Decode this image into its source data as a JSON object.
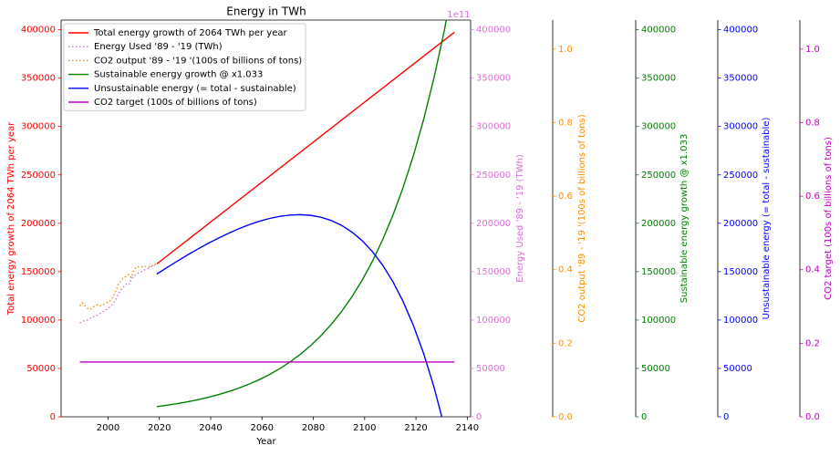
{
  "chart_data": {
    "type": "line",
    "title": "Energy in TWh",
    "xlabel": "Year",
    "xlim": [
      1981.7,
      2141.3
    ],
    "xticks": [
      2000,
      2020,
      2040,
      2060,
      2080,
      2100,
      2120,
      2140
    ],
    "offset_text": "1e11",
    "legend": "upper left",
    "grid": false,
    "axes": [
      {
        "label": "Total energy growth of 2064 TWh per year",
        "color": "red",
        "ylim": [
          0,
          410000
        ],
        "yticks": [
          0,
          50000,
          100000,
          150000,
          200000,
          250000,
          300000,
          350000,
          400000
        ]
      },
      {
        "label": "Energy Used '89 - '19 (TWh)",
        "color": "orchid",
        "ylim": [
          0,
          410000
        ],
        "yticks": [
          0,
          50000,
          100000,
          150000,
          200000,
          250000,
          300000,
          350000,
          400000
        ]
      },
      {
        "label": "CO2 output '89 - '19 '(100s of billions of tons)",
        "color": "darkorange",
        "ylim": [
          0,
          1.079
        ],
        "yticks": [
          {
            "value": 0,
            "label": "0.0"
          },
          0.2,
          0.4,
          0.6,
          0.8,
          {
            "value": 1,
            "label": "1.0"
          }
        ]
      },
      {
        "label": "Sustainable energy growth @ x1.033",
        "color": "green",
        "ylim": [
          0,
          410000
        ],
        "yticks": [
          0,
          50000,
          100000,
          150000,
          200000,
          250000,
          300000,
          350000,
          400000
        ]
      },
      {
        "label": "Unsustainable energy (= total - sustainable)",
        "color": "blue",
        "ylim": [
          0,
          410000
        ],
        "yticks": [
          0,
          50000,
          100000,
          150000,
          200000,
          250000,
          300000,
          350000,
          400000
        ]
      },
      {
        "label": "CO2 target (100s of billions of tons)",
        "color": "#c000c0",
        "ylim": [
          0,
          1.079
        ],
        "yticks": [
          {
            "value": 0,
            "label": "0.0"
          },
          0.2,
          0.4,
          0.6,
          0.8,
          {
            "value": 1,
            "label": "1.0"
          }
        ]
      }
    ],
    "series": [
      {
        "name": "Total energy growth of 2064 TWh per year",
        "color": "red",
        "style": "solid",
        "axis": 0,
        "x": [
          2019,
          2135
        ],
        "values": [
          158000,
          397424
        ]
      },
      {
        "name": "Energy Used '89 - '19 (TWh)",
        "color": "orchid",
        "style": "dotted",
        "axis": 1,
        "x": [
          1989,
          1990,
          1991,
          1992,
          1993,
          1994,
          1995,
          1996,
          1997,
          1998,
          1999,
          2000,
          2001,
          2002,
          2003,
          2004,
          2005,
          2006,
          2007,
          2008,
          2009,
          2010,
          2011,
          2012,
          2013,
          2014,
          2015,
          2016,
          2017,
          2018,
          2019
        ],
        "values": [
          97000,
          98500,
          99500,
          100000,
          101500,
          103000,
          104000,
          105500,
          107000,
          108500,
          110000,
          112000,
          114000,
          117000,
          121000,
          127000,
          131000,
          134000,
          137000,
          136000,
          142000,
          145000,
          147000,
          149000,
          150000,
          151500,
          152500,
          154000,
          155500,
          156500,
          158000
        ]
      },
      {
        "name": "CO2 output '89 - '19 '(100s of billions of tons)",
        "color": "darkorange",
        "style": "dotted",
        "axis": 2,
        "x": [
          1989,
          1990,
          1991,
          1992,
          1993,
          1994,
          1995,
          1996,
          1997,
          1998,
          1999,
          2000,
          2001,
          2002,
          2003,
          2004,
          2005,
          2006,
          2007,
          2008,
          2009,
          2010,
          2011,
          2012,
          2013,
          2014,
          2015,
          2016,
          2017,
          2018,
          2019
        ],
        "values": [
          0.302,
          0.31,
          0.302,
          0.295,
          0.292,
          0.297,
          0.302,
          0.305,
          0.302,
          0.305,
          0.308,
          0.313,
          0.316,
          0.326,
          0.342,
          0.36,
          0.371,
          0.379,
          0.381,
          0.387,
          0.379,
          0.397,
          0.408,
          0.408,
          0.408,
          0.41,
          0.408,
          0.408,
          0.41,
          0.416,
          0.416
        ]
      },
      {
        "name": "Sustainable energy growth @ x1.033",
        "color": "green",
        "style": "solid",
        "axis": 3,
        "x": [
          2019,
          2023,
          2027,
          2031,
          2035,
          2039,
          2043,
          2047,
          2051,
          2055,
          2059,
          2063,
          2067,
          2071,
          2075,
          2079,
          2083,
          2087,
          2091,
          2095,
          2099,
          2103,
          2107,
          2111,
          2115,
          2119,
          2123,
          2127,
          2131,
          2135
        ],
        "values": [
          10500,
          11956,
          13614,
          15502,
          17652,
          20100,
          22888,
          26062,
          29676,
          33792,
          38478,
          43814,
          49891,
          56810,
          64689,
          73661,
          83876,
          95509,
          108755,
          123838,
          141013,
          160569,
          182839,
          208196,
          237070,
          269949,
          307388,
          350019,
          398562,
          453838
        ]
      },
      {
        "name": "Unsustainable energy (= total - sustainable)",
        "color": "blue",
        "style": "solid",
        "axis": 4,
        "x": [
          2019,
          2023,
          2027,
          2031,
          2035,
          2039,
          2043,
          2047,
          2051,
          2055,
          2059,
          2063,
          2067,
          2071,
          2075,
          2079,
          2083,
          2087,
          2091,
          2095,
          2099,
          2103,
          2107,
          2111,
          2115,
          2119,
          2123,
          2127,
          2131,
          2135
        ],
        "values": [
          147500,
          154300,
          160898,
          167266,
          173372,
          179180,
          184648,
          189730,
          194372,
          198512,
          202082,
          205002,
          207181,
          208518,
          208895,
          208179,
          206220,
          202843,
          197853,
          191026,
          182107,
          170807,
          156793,
          139692,
          119074,
          94451,
          65268,
          30893,
          -9394,
          -56414
        ]
      },
      {
        "name": "CO2 target (100s of billions of tons)",
        "color": "#c000c0",
        "style": "solid",
        "axis": 5,
        "x": [
          1989,
          2135
        ],
        "values": [
          0.149,
          0.149
        ]
      }
    ]
  }
}
